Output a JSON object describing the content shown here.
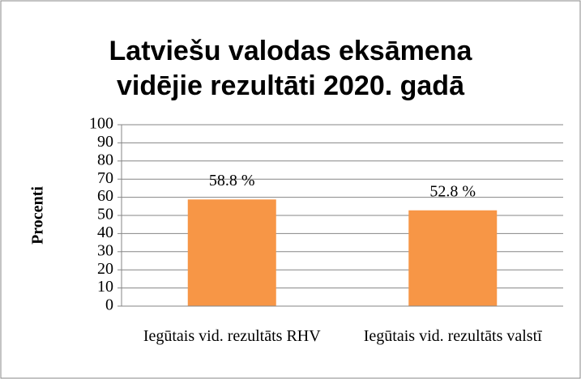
{
  "chart_data": {
    "type": "bar",
    "title": "Latviešu valodas eksāmena vidējie rezultāti 2020. gadā",
    "y_label": "Procenti",
    "categories": [
      "Iegūtais vid. rezultāts RHV",
      "Iegūtais vid. rezultāts valstī"
    ],
    "values": [
      58.8,
      52.8
    ],
    "value_labels": [
      "58.8 %",
      "52.8 %"
    ],
    "color": "#f79646",
    "ylim": [
      0,
      100
    ],
    "yticks": [
      0,
      10,
      20,
      30,
      40,
      50,
      60,
      70,
      80,
      90,
      100
    ],
    "grid": true
  }
}
